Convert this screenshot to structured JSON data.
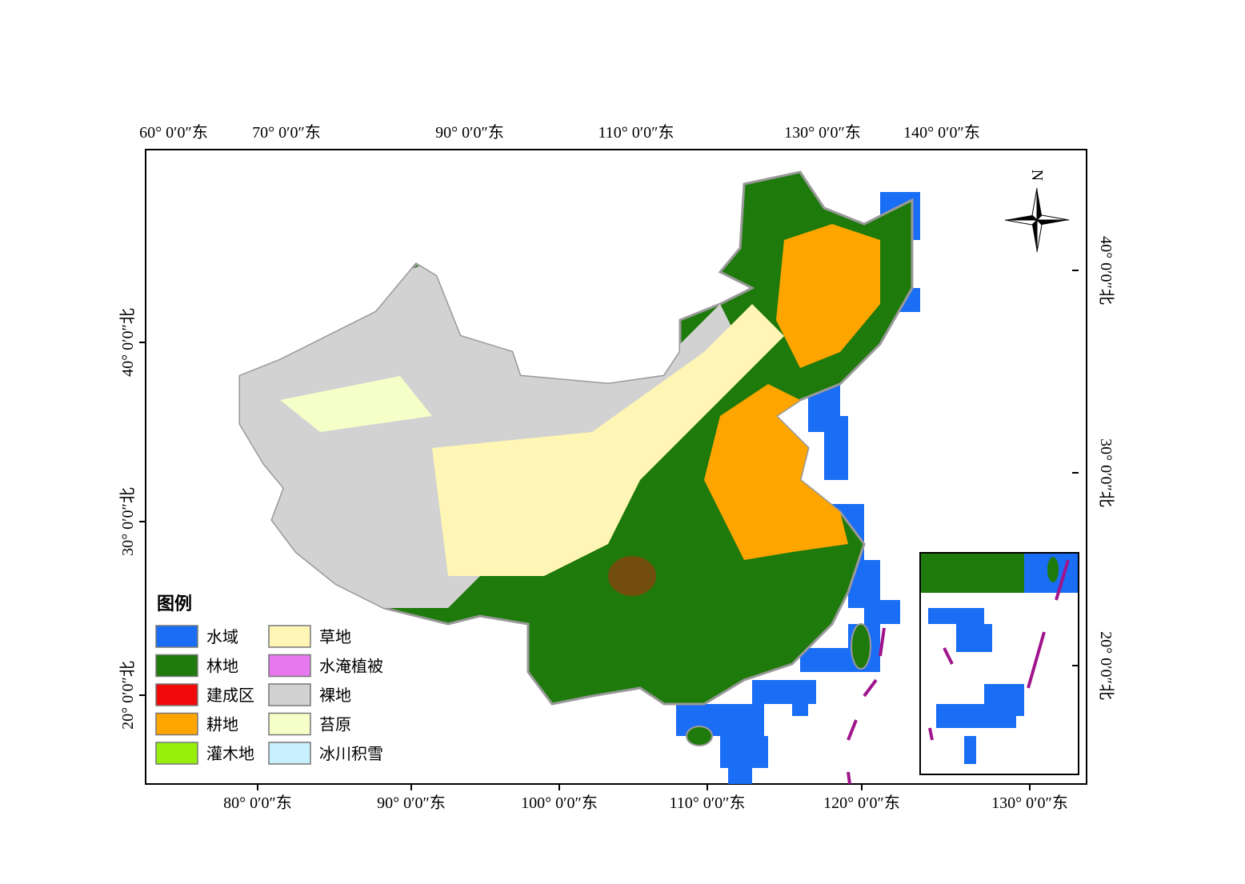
{
  "map": {
    "north_label": "N",
    "top_labels": [
      "60° 0′0″东",
      "70° 0′0″东",
      "90° 0′0″东",
      "110° 0′0″东",
      "130° 0′0″东",
      "140° 0′0″东"
    ],
    "bottom_labels": [
      "80° 0′0″东",
      "90° 0′0″东",
      "100° 0′0″东",
      "110° 0′0″东",
      "120° 0′0″东",
      "130° 0′0″东"
    ],
    "left_labels": [
      "40° 0′0″北",
      "30° 0′0″北",
      "20° 0′0″北"
    ],
    "right_labels": [
      "40° 0′0″北",
      "30° 0′0″北",
      "20° 0′0″北"
    ],
    "legend": {
      "title": "图例",
      "items": [
        {
          "label": "水域",
          "color": "#1a6ef5"
        },
        {
          "label": "林地",
          "color": "#1f7a0c"
        },
        {
          "label": "建成区",
          "color": "#f00a0a"
        },
        {
          "label": "耕地",
          "color": "#ffa500"
        },
        {
          "label": "灌木地",
          "color": "#96f00a"
        },
        {
          "label": "草地",
          "color": "#fff5b4"
        },
        {
          "label": "水淹植被",
          "color": "#e878f0"
        },
        {
          "label": "裸地",
          "color": "#d2d2d2"
        },
        {
          "label": "苔原",
          "color": "#f5ffc8"
        },
        {
          "label": "冰川积雪",
          "color": "#c8f0ff"
        }
      ]
    }
  }
}
